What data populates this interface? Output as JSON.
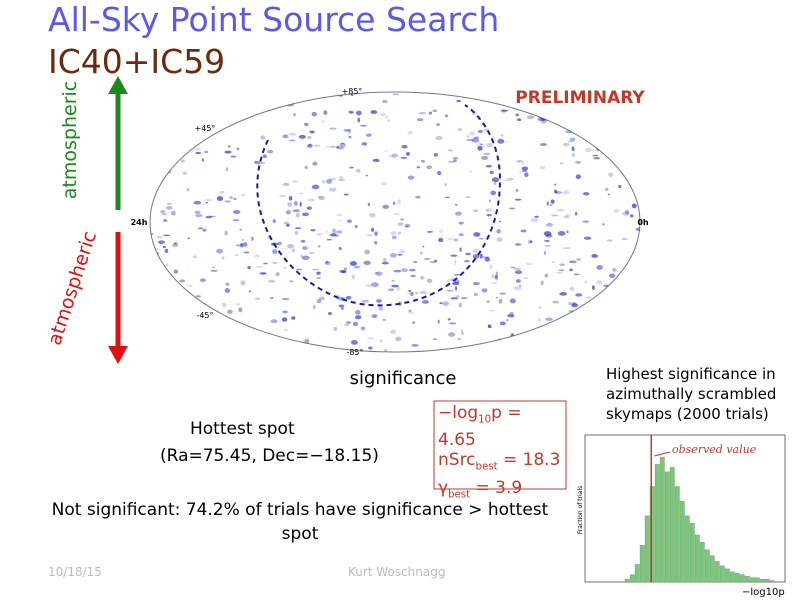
{
  "header": {
    "title": "All-Sky Point Source Search",
    "subtitle": "IC40+IC59"
  },
  "arrows": {
    "up_label": "atmospheric",
    "down_label": "atmospheric"
  },
  "skymap": {
    "badge": "PRELIMINARY",
    "dec_top": "+85°",
    "dec_upper": "+45°",
    "dec_lower": "-45°",
    "dec_bottom": "-85°",
    "ra_left": "24h",
    "ra_right": "0h",
    "caption": "significance"
  },
  "hotspot": {
    "label": "Hottest spot",
    "coords": "(Ra=75.45, Dec=−18.15)"
  },
  "results": {
    "logp_prefix": "−log",
    "logp_sub": "10",
    "logp_suffix": "p = 4.65",
    "nsrc_prefix": "nSrc",
    "nsrc_sub": "best",
    "nsrc_suffix": " = 18.3",
    "gamma_prefix": "γ",
    "gamma_sub": "best",
    "gamma_suffix": " = 3.9",
    "logp_value": 4.65
  },
  "conclusion": "Not significant: 74.2% of trials have significance > hottest spot",
  "trials": {
    "caption": "Highest significance in azimuthally scrambled skymaps (2000 trials)",
    "annotation": "observed value",
    "ylabel": "Fraction of trials",
    "xlabel": "−log10p",
    "bins": [
      3.6,
      3.8,
      4.0,
      4.2,
      4.4,
      4.6,
      4.8,
      5.0,
      5.2,
      5.4,
      5.6,
      5.8,
      6.0,
      6.2,
      6.4,
      6.6,
      6.8,
      7.0,
      7.2,
      7.4,
      7.6,
      7.8,
      8.0,
      8.2,
      8.4,
      8.6,
      8.8,
      9.0,
      9.2,
      9.4,
      9.6
    ],
    "counts": [
      0.002,
      0.005,
      0.012,
      0.025,
      0.045,
      0.065,
      0.08,
      0.085,
      0.075,
      0.078,
      0.065,
      0.055,
      0.045,
      0.04,
      0.032,
      0.027,
      0.022,
      0.018,
      0.014,
      0.011,
      0.009,
      0.007,
      0.006,
      0.005,
      0.004,
      0.003,
      0.003,
      0.002,
      0.002,
      0.001
    ],
    "xlim": [
      2,
      10
    ],
    "ylim": [
      0,
      0.1
    ]
  },
  "footer": {
    "date": "10/18/15",
    "author": "Kurt Woschnagg"
  }
}
